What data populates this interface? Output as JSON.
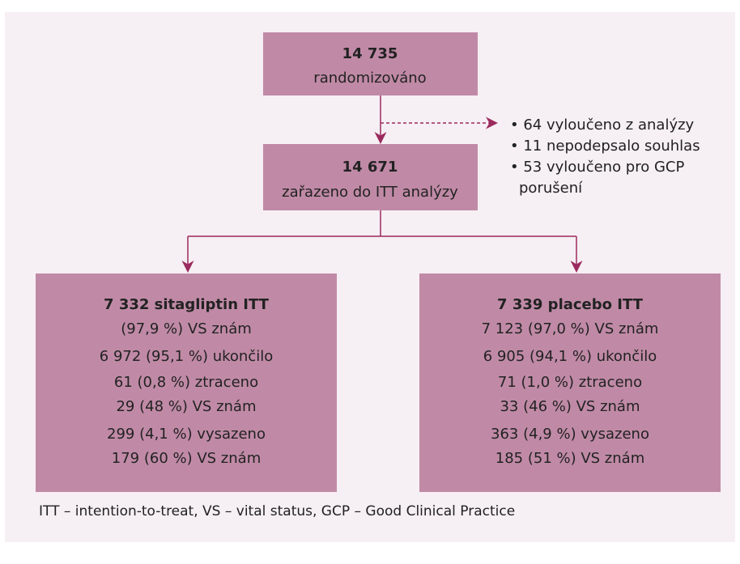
{
  "nodes": [
    {
      "lines": [
        "14 735",
        "randomizováno"
      ]
    },
    {
      "lines": [
        "14 671",
        "zařazeno do ITT analýzy"
      ]
    },
    {
      "lines": [
        "7 332 sitagliptin ITT",
        "(97,9 %) VS znám",
        "6 972 (95,1 %) ukončilo",
        "61 (0,8 %) ztraceno",
        "29 (48 %) VS znám",
        "299 (4,1 %) vysazeno",
        "179 (60 %) VS znám"
      ]
    },
    {
      "lines": [
        "7 339 placebo ITT",
        "7 123 (97,0 %) VS znám",
        "6 905 (94,1 %) ukončilo",
        "71 (1,0 %) ztraceno",
        "33 (46 %) VS znám",
        "363 (4,9 %) vysazeno",
        "185 (51 %) VS znám"
      ]
    }
  ],
  "exclusions": [
    "• 64 vyloučeno z analýzy",
    "• 11 nepodepsalo souhlas",
    "• 53 vyloučeno pro GCP",
    "porušení"
  ],
  "footnote": "ITT – intention-to-treat,  VS – vital status, GCP – Good Clinical Practice"
}
